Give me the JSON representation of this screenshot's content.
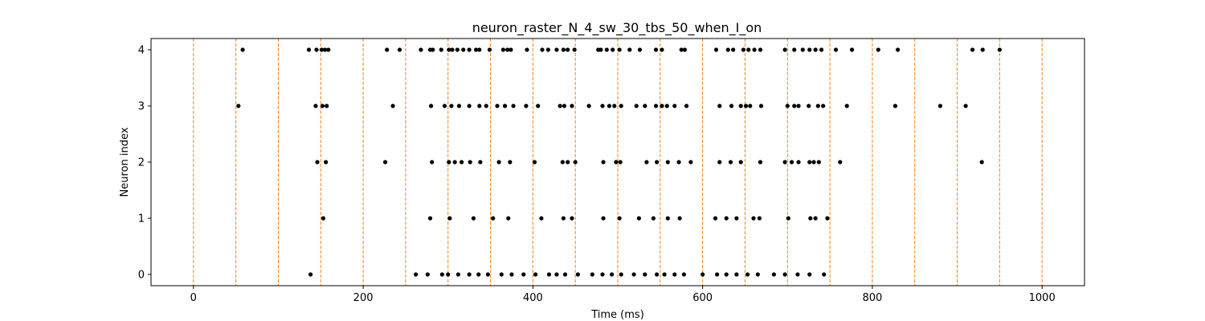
{
  "chart_data": {
    "type": "scatter",
    "title": "neuron_raster_N_4_sw_30_tbs_50_when_I_on",
    "xlabel": "Time (ms)",
    "ylabel": "Neuron index",
    "xlim": [
      -50,
      1050
    ],
    "ylim": [
      -0.2,
      4.2
    ],
    "xticks": [
      0,
      200,
      400,
      600,
      800,
      1000
    ],
    "yticks": [
      0,
      1,
      2,
      3,
      4
    ],
    "grid": false,
    "marker_color": "#000000",
    "vline_color": "#ff7f0e",
    "vlines": [
      0,
      50,
      100,
      150,
      200,
      250,
      300,
      350,
      400,
      450,
      500,
      550,
      600,
      650,
      700,
      750,
      800,
      850,
      900,
      950,
      1000
    ],
    "series": [
      {
        "neuron": 0,
        "x": [
          138,
          262,
          276,
          293,
          300,
          312,
          325,
          336,
          347,
          363,
          375,
          389,
          403,
          419,
          428,
          438,
          453,
          470,
          482,
          493,
          504,
          519,
          532,
          546,
          555,
          567,
          578,
          600,
          617,
          628,
          640,
          653,
          665,
          684,
          697,
          712,
          726,
          743
        ]
      },
      {
        "neuron": 1,
        "x": [
          153,
          279,
          302,
          330,
          353,
          371,
          410,
          436,
          446,
          483,
          502,
          525,
          542,
          559,
          573,
          615,
          628,
          640,
          660,
          667,
          701,
          727,
          733,
          747
        ]
      },
      {
        "neuron": 2,
        "x": [
          146,
          156,
          226,
          281,
          301,
          308,
          316,
          326,
          338,
          360,
          373,
          402,
          435,
          441,
          450,
          483,
          498,
          503,
          534,
          546,
          559,
          572,
          586,
          620,
          633,
          645,
          668,
          697,
          705,
          713,
          726,
          731,
          737,
          762,
          929
        ]
      },
      {
        "neuron": 3,
        "x": [
          53,
          144,
          152,
          157,
          235,
          280,
          296,
          304,
          313,
          325,
          337,
          345,
          358,
          367,
          377,
          392,
          406,
          432,
          437,
          446,
          466,
          482,
          490,
          496,
          504,
          522,
          532,
          545,
          552,
          558,
          567,
          581,
          620,
          634,
          645,
          651,
          656,
          669,
          700,
          708,
          713,
          725,
          736,
          742,
          770,
          827,
          880,
          910
        ]
      },
      {
        "neuron": 4,
        "x": [
          58,
          136,
          145,
          151,
          155,
          159,
          228,
          243,
          268,
          279,
          282,
          292,
          301,
          305,
          311,
          318,
          325,
          333,
          337,
          349,
          365,
          370,
          374,
          393,
          411,
          418,
          428,
          436,
          441,
          449,
          477,
          480,
          487,
          494,
          502,
          514,
          526,
          545,
          552,
          575,
          579,
          616,
          630,
          636,
          648,
          654,
          661,
          668,
          697,
          708,
          718,
          726,
          733,
          740,
          757,
          776,
          807,
          830,
          918,
          930,
          950
        ]
      }
    ]
  }
}
